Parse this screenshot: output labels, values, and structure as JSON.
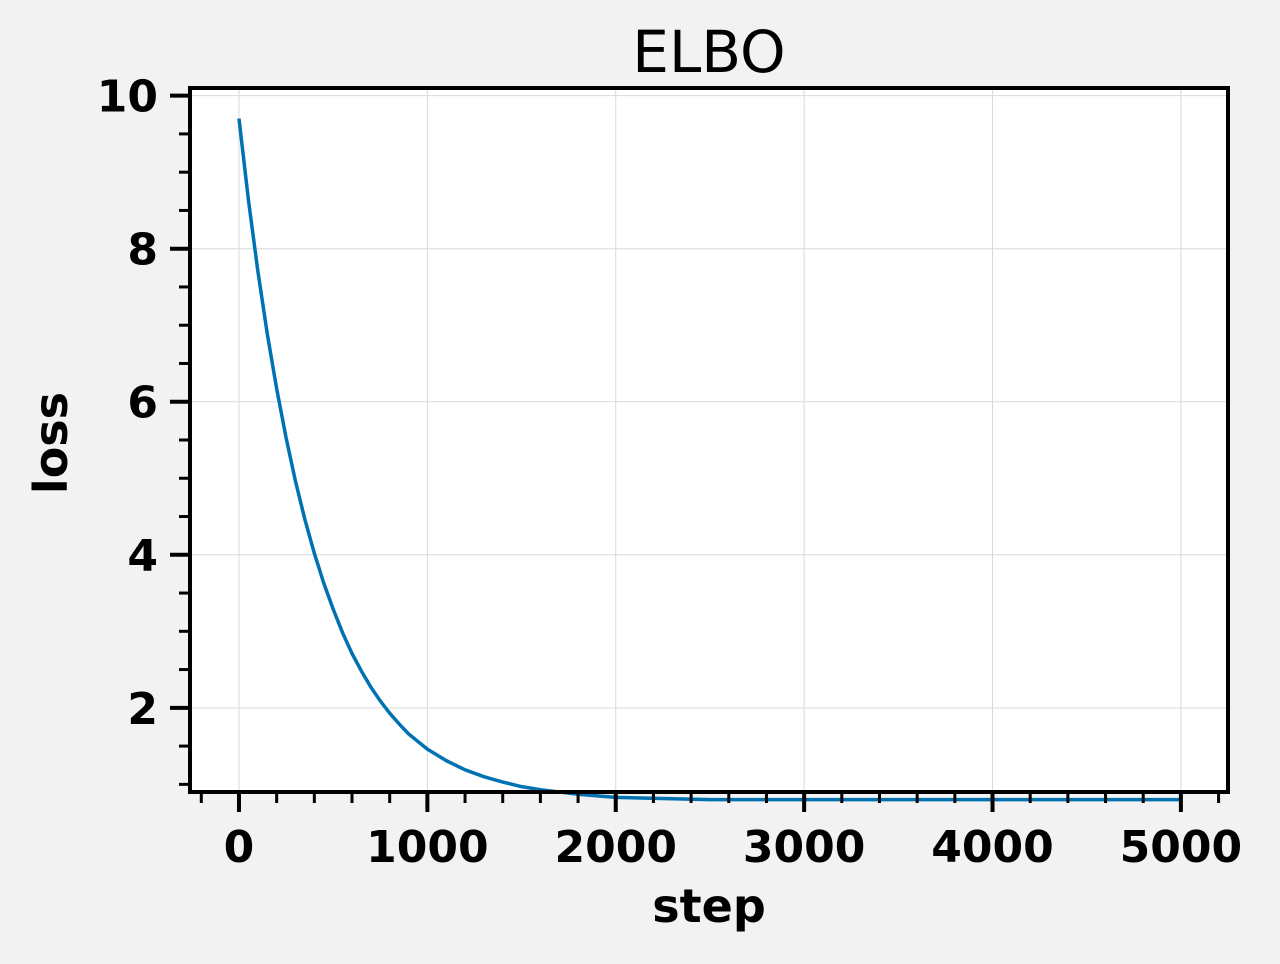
{
  "chart_data": {
    "type": "line",
    "title": "ELBO",
    "xlabel": "step",
    "ylabel": "loss",
    "xlim": [
      -260,
      5250
    ],
    "ylim": [
      0.9,
      10.1
    ],
    "x_ticks": [
      0,
      1000,
      2000,
      3000,
      4000,
      5000
    ],
    "x_tick_labels": [
      "0",
      "1000",
      "2000",
      "3000",
      "4000",
      "5000"
    ],
    "x_minor_step": 200,
    "y_ticks": [
      2,
      4,
      6,
      8,
      10
    ],
    "y_tick_labels": [
      "2",
      "4",
      "6",
      "8",
      "10"
    ],
    "y_minor_step": 0.5,
    "grid": true,
    "legend": "none",
    "colors": {
      "line": "#0072b2",
      "grid": "#d9d9d9",
      "axes_bg": "#ffffff",
      "figure_bg": "#f2f2f2",
      "spine": "#000000"
    },
    "series": [
      {
        "x": [
          0,
          50,
          100,
          150,
          200,
          250,
          300,
          350,
          400,
          450,
          500,
          550,
          600,
          650,
          700,
          750,
          800,
          850,
          900,
          950,
          1000,
          1100,
          1200,
          1300,
          1400,
          1500,
          1600,
          1800,
          2000,
          2500,
          3000,
          3500,
          4000,
          4500,
          5000
        ],
        "values": [
          9.7,
          8.64,
          7.71,
          6.89,
          6.17,
          5.53,
          4.96,
          4.46,
          4.02,
          3.63,
          3.29,
          2.98,
          2.71,
          2.48,
          2.27,
          2.09,
          1.93,
          1.79,
          1.66,
          1.56,
          1.46,
          1.31,
          1.19,
          1.1,
          1.03,
          0.97,
          0.93,
          0.87,
          0.83,
          0.8,
          0.8,
          0.8,
          0.8,
          0.8,
          0.8
        ]
      }
    ]
  }
}
